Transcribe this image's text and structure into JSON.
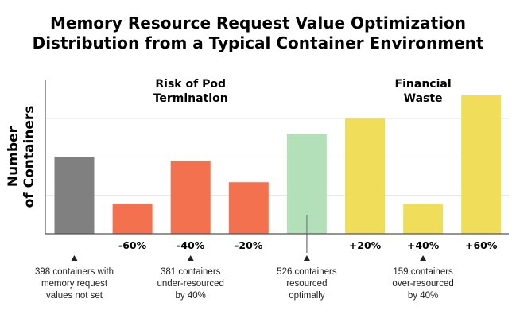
{
  "chart_data": {
    "type": "bar",
    "title": [
      "Memory Resource Request Value Optimization",
      "Distribution from a Typical Container Environment"
    ],
    "ylabel": [
      "Number",
      "of Containers"
    ],
    "ylim": [
      0,
      180
    ],
    "grid": true,
    "categories": [
      "",
      "-60%",
      "-40%",
      "-20%",
      "",
      "+20%",
      "+40%",
      "+60%"
    ],
    "values": [
      100,
      39,
      95,
      67,
      130,
      150,
      39,
      180
    ],
    "colors": [
      "#808080",
      "#f3714f",
      "#f3714f",
      "#f3714f",
      "#b3e0b8",
      "#f0de5a",
      "#f0de5a",
      "#f0de5a"
    ],
    "regions": [
      {
        "lines": [
          "Risk of Pod",
          "Termination"
        ],
        "center_bar": 2
      },
      {
        "lines": [
          "Financial",
          "Waste"
        ],
        "center_bar": 6
      }
    ],
    "annotations": [
      {
        "bar": 0,
        "lines": [
          "398 containers with",
          "memory request",
          "values not set"
        ]
      },
      {
        "bar": 2,
        "lines": [
          "381 containers",
          "under-resourced",
          "by 40%"
        ]
      },
      {
        "bar": 4,
        "lines": [
          "526 containers",
          "resourced",
          "optimally"
        ],
        "leader": true
      },
      {
        "bar": 6,
        "lines": [
          "159 containers",
          "over-resourced",
          "by 40%"
        ]
      }
    ]
  },
  "colors": {
    "grid": "#e6e6e6",
    "axis": "#555555",
    "marker": "#222222"
  }
}
